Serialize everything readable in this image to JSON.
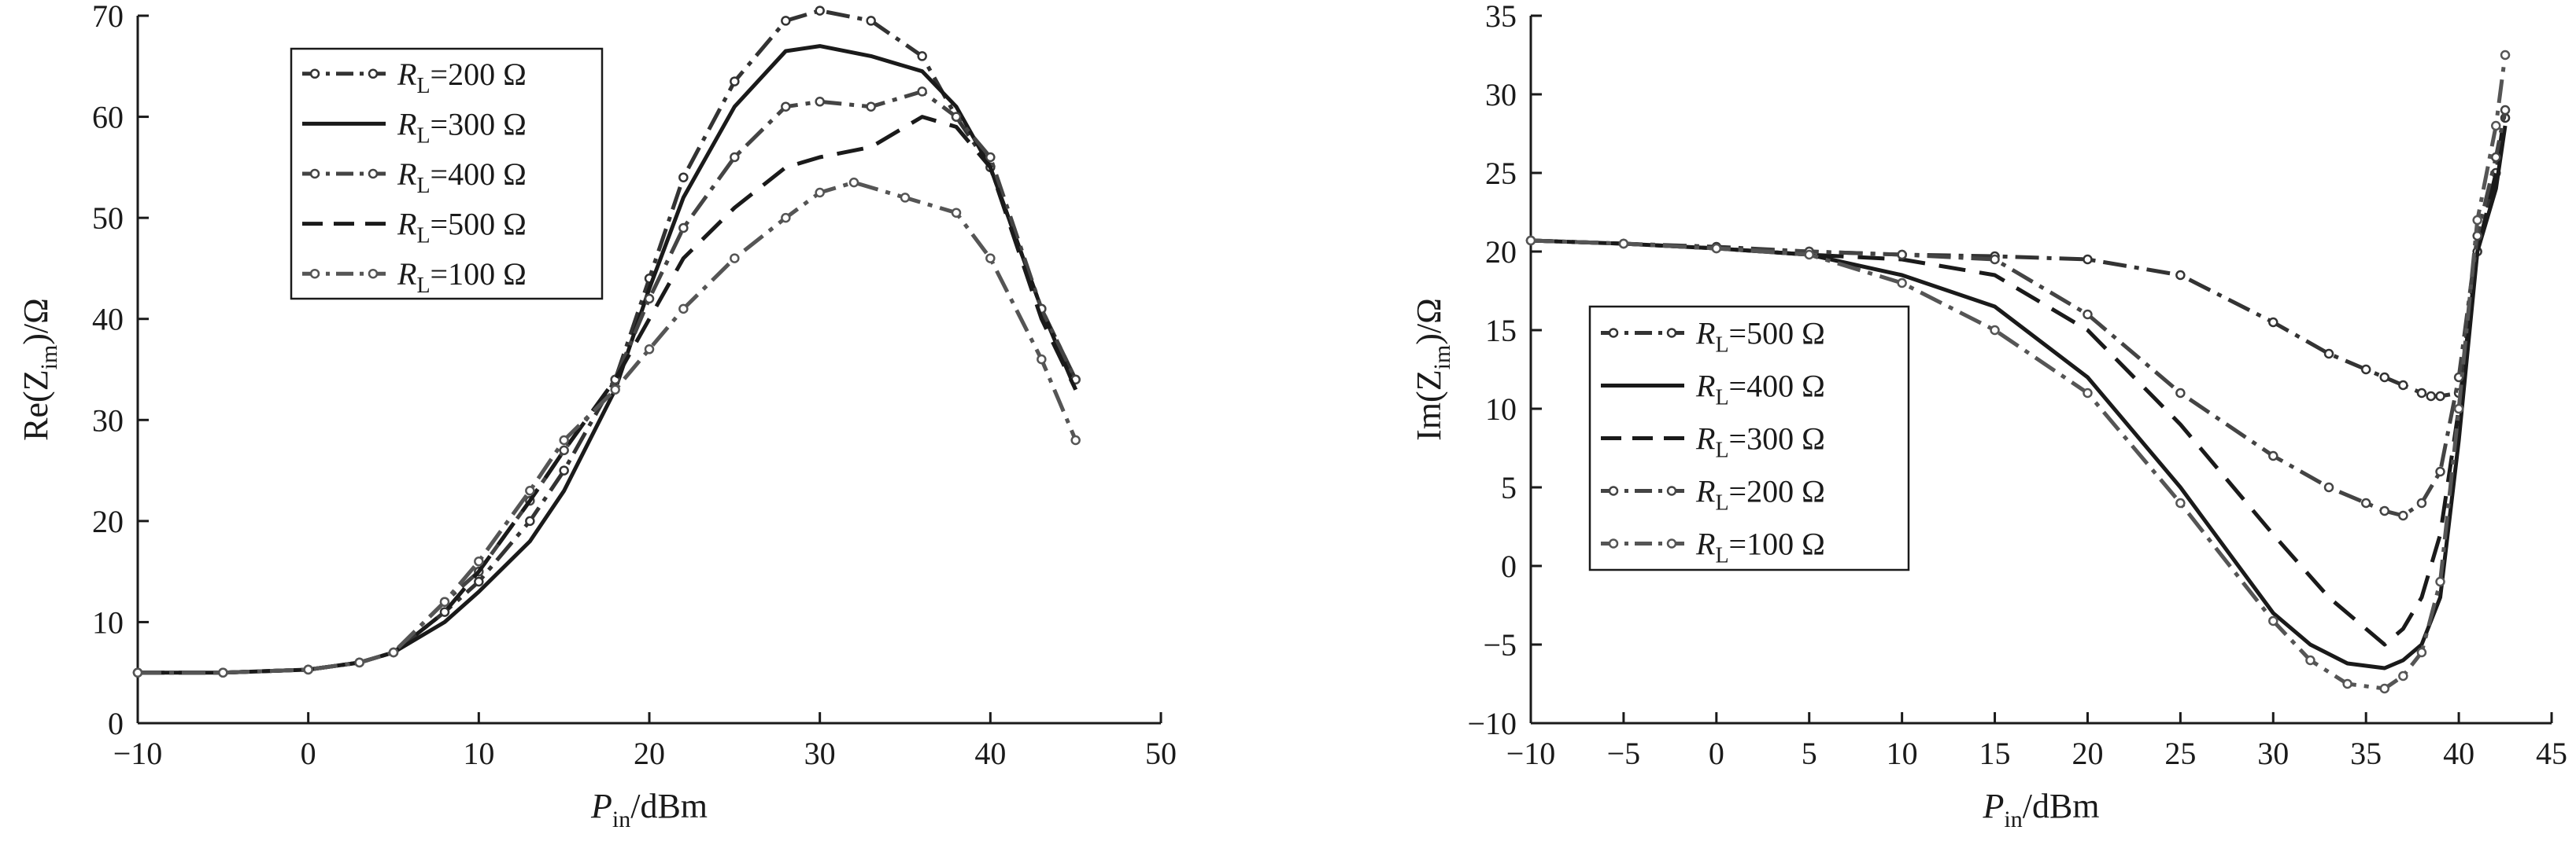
{
  "chart_data": [
    {
      "type": "line",
      "id": "re",
      "xlabel": "P_in/dBm",
      "xlabel_parts": {
        "main": "P",
        "sub": "in",
        "rest": "/dBm"
      },
      "ylabel": "Re(Z_im)/Ω",
      "ylabel_parts": {
        "pre": "Re(Z",
        "sub": "im",
        "post": ")/Ω"
      },
      "xlim": [
        -10,
        50
      ],
      "ylim": [
        0,
        70
      ],
      "xticks": [
        -10,
        0,
        10,
        20,
        30,
        40,
        50
      ],
      "xtick_labels": [
        "−10",
        "0",
        "10",
        "20",
        "30",
        "40",
        "50"
      ],
      "yticks": [
        0,
        10,
        20,
        30,
        40,
        50,
        60,
        70
      ],
      "ytick_labels": [
        "0",
        "10",
        "20",
        "30",
        "40",
        "50",
        "60",
        "70"
      ],
      "legend_position": "top-left",
      "series": [
        {
          "name": "R_L=200 Ω",
          "label_parts": {
            "main": "R",
            "sub": "L",
            "rest": "=200 Ω"
          },
          "style": "dash-dot-marker",
          "color": "#333333",
          "x": [
            -10,
            -5,
            0,
            3,
            5,
            8,
            10,
            13,
            15,
            18,
            20,
            22,
            25,
            28,
            30,
            33,
            36,
            38,
            40,
            43,
            45
          ],
          "y": [
            5,
            5,
            5.3,
            6,
            7,
            11,
            14,
            20,
            25,
            34,
            44,
            54,
            63.5,
            69.5,
            70.5,
            69.5,
            66,
            60,
            55,
            41,
            34
          ]
        },
        {
          "name": "R_L=300 Ω",
          "label_parts": {
            "main": "R",
            "sub": "L",
            "rest": "=300 Ω"
          },
          "style": "solid",
          "color": "#1a1a1a",
          "x": [
            -10,
            -5,
            0,
            3,
            5,
            8,
            10,
            13,
            15,
            18,
            20,
            22,
            25,
            28,
            30,
            33,
            36,
            38,
            40,
            43,
            45
          ],
          "y": [
            5,
            5,
            5.3,
            6,
            7,
            10,
            13,
            18,
            23,
            33,
            43,
            52,
            61,
            66.5,
            67,
            66,
            64.5,
            61,
            55,
            41,
            33
          ]
        },
        {
          "name": "R_L=400 Ω",
          "label_parts": {
            "main": "R",
            "sub": "L",
            "rest": "=400 Ω"
          },
          "style": "dash-dot-marker",
          "color": "#444444",
          "x": [
            -10,
            -5,
            0,
            3,
            5,
            8,
            10,
            13,
            15,
            18,
            20,
            22,
            25,
            28,
            30,
            33,
            36,
            38,
            40,
            43,
            45
          ],
          "y": [
            5,
            5,
            5.3,
            6,
            7,
            12,
            15,
            22,
            27,
            34,
            42,
            49,
            56,
            61,
            61.5,
            61,
            62.5,
            60,
            56,
            41,
            34
          ]
        },
        {
          "name": "R_L=500 Ω",
          "label_parts": {
            "main": "R",
            "sub": "L",
            "rest": "=500 Ω"
          },
          "style": "dashed",
          "color": "#1a1a1a",
          "x": [
            -10,
            -5,
            0,
            3,
            5,
            8,
            10,
            13,
            15,
            18,
            20,
            22,
            25,
            28,
            30,
            33,
            36,
            38,
            40,
            43,
            45
          ],
          "y": [
            5,
            5,
            5.3,
            6,
            7,
            11,
            15,
            22,
            27,
            34,
            40,
            46,
            51,
            55,
            56,
            57,
            60,
            59,
            55,
            40,
            33
          ]
        },
        {
          "name": "R_L=100 Ω",
          "label_parts": {
            "main": "R",
            "sub": "L",
            "rest": "=100 Ω"
          },
          "style": "dash-dot-marker",
          "color": "#555555",
          "x": [
            -10,
            -5,
            0,
            3,
            5,
            8,
            10,
            13,
            15,
            18,
            20,
            22,
            25,
            28,
            30,
            32,
            35,
            38,
            40,
            43,
            45
          ],
          "y": [
            5,
            5,
            5.3,
            6,
            7,
            12,
            16,
            23,
            28,
            33,
            37,
            41,
            46,
            50,
            52.5,
            53.5,
            52,
            50.5,
            46,
            36,
            28
          ]
        }
      ]
    },
    {
      "type": "line",
      "id": "im",
      "xlabel": "P_in/dBm",
      "xlabel_parts": {
        "main": "P",
        "sub": "in",
        "rest": "/dBm"
      },
      "ylabel": "Im(Z_im)/Ω",
      "ylabel_parts": {
        "pre": "Im(Z",
        "sub": "im",
        "post": ")/Ω"
      },
      "xlim": [
        -10,
        45
      ],
      "ylim": [
        -10,
        35
      ],
      "xticks": [
        -10,
        -5,
        0,
        5,
        10,
        15,
        20,
        25,
        30,
        35,
        40,
        45
      ],
      "xtick_labels": [
        "−10",
        "−5",
        "0",
        "5",
        "10",
        "15",
        "20",
        "25",
        "30",
        "35",
        "40",
        "45"
      ],
      "yticks": [
        -10,
        -5,
        0,
        5,
        10,
        15,
        20,
        25,
        30,
        35
      ],
      "ytick_labels": [
        "−10",
        "−5",
        "0",
        "5",
        "10",
        "15",
        "20",
        "25",
        "30",
        "35"
      ],
      "legend_position": "center-left",
      "series": [
        {
          "name": "R_L=500 Ω",
          "label_parts": {
            "main": "R",
            "sub": "L",
            "rest": "=500 Ω"
          },
          "style": "dash-dot-marker",
          "color": "#333333",
          "x": [
            -10,
            -5,
            0,
            5,
            10,
            15,
            20,
            25,
            30,
            33,
            35,
            36,
            37,
            38,
            38.5,
            39,
            40,
            41,
            42,
            42.5
          ],
          "y": [
            20.7,
            20.5,
            20.3,
            20,
            19.8,
            19.7,
            19.5,
            18.5,
            15.5,
            13.5,
            12.5,
            12,
            11.5,
            11,
            10.8,
            10.8,
            11,
            20,
            25,
            28.5
          ]
        },
        {
          "name": "R_L=400 Ω",
          "label_parts": {
            "main": "R",
            "sub": "L",
            "rest": "=400 Ω"
          },
          "style": "solid",
          "color": "#1a1a1a",
          "x": [
            -10,
            -5,
            0,
            5,
            10,
            15,
            20,
            25,
            30,
            32,
            34,
            36,
            37,
            38,
            39,
            40,
            41,
            42,
            42.5
          ],
          "y": [
            20.7,
            20.5,
            20.2,
            19.8,
            18.5,
            16.5,
            12,
            5,
            -3,
            -5,
            -6.2,
            -6.5,
            -6,
            -5,
            -2,
            8,
            20,
            24,
            28
          ]
        },
        {
          "name": "R_L=300 Ω",
          "label_parts": {
            "main": "R",
            "sub": "L",
            "rest": "=300 Ω"
          },
          "style": "dashed",
          "color": "#1a1a1a",
          "x": [
            -10,
            -5,
            0,
            5,
            10,
            15,
            20,
            25,
            30,
            33,
            35,
            36,
            37,
            38,
            39,
            40,
            41,
            42,
            42.5
          ],
          "y": [
            20.7,
            20.5,
            20.2,
            19.8,
            19.5,
            18.5,
            15,
            9,
            2,
            -2,
            -4,
            -5,
            -4,
            -2,
            2,
            10,
            20,
            25,
            29
          ]
        },
        {
          "name": "R_L=200 Ω",
          "label_parts": {
            "main": "R",
            "sub": "L",
            "rest": "=200 Ω"
          },
          "style": "dash-dot-marker",
          "color": "#444444",
          "x": [
            -10,
            -5,
            0,
            5,
            10,
            15,
            20,
            25,
            30,
            33,
            35,
            36,
            37,
            38,
            39,
            40,
            41,
            42,
            42.5
          ],
          "y": [
            20.7,
            20.5,
            20.2,
            20,
            19.8,
            19.5,
            16,
            11,
            7,
            5,
            4,
            3.5,
            3.2,
            4,
            6,
            12,
            21,
            26,
            29
          ]
        },
        {
          "name": "R_L=100 Ω",
          "label_parts": {
            "main": "R",
            "sub": "L",
            "rest": "=100 Ω"
          },
          "style": "dash-dot-marker",
          "color": "#555555",
          "x": [
            -10,
            -5,
            0,
            5,
            10,
            15,
            20,
            25,
            30,
            32,
            34,
            36,
            37,
            38,
            39,
            40,
            41,
            42,
            42.5
          ],
          "y": [
            20.7,
            20.5,
            20.2,
            19.8,
            18,
            15,
            11,
            4,
            -3.5,
            -6,
            -7.5,
            -7.8,
            -7,
            -5.5,
            -1,
            10,
            22,
            28,
            32.5
          ]
        }
      ]
    }
  ]
}
